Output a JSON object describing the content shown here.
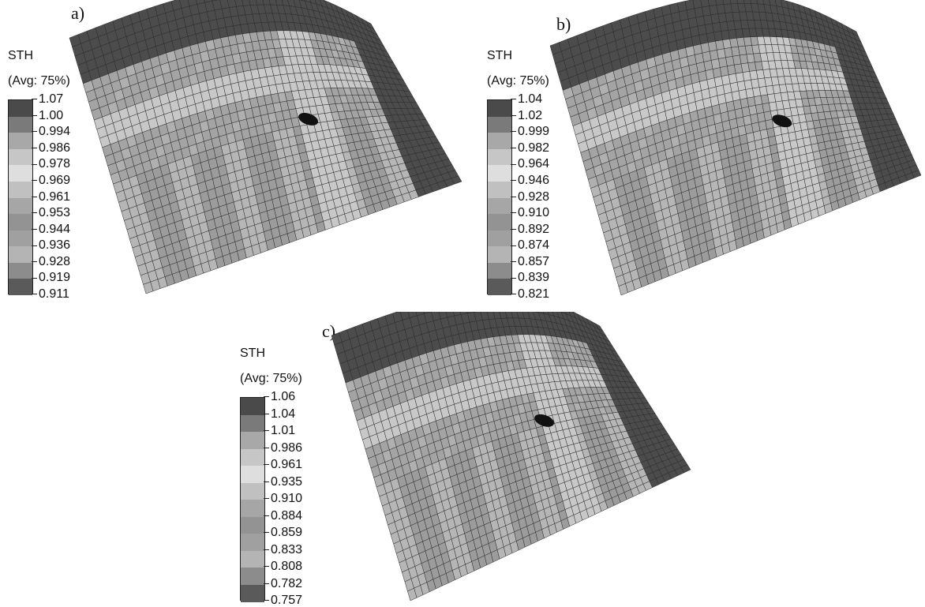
{
  "panels": [
    {
      "id": "a",
      "label": "a)",
      "legend": {
        "title": "STH",
        "subtitle": "(Avg: 75%)",
        "values": [
          "1.07",
          "1.00",
          "0.994",
          "0.986",
          "0.978",
          "0.969",
          "0.961",
          "0.953",
          "0.944",
          "0.936",
          "0.928",
          "0.919",
          "0.911"
        ]
      }
    },
    {
      "id": "b",
      "label": "b)",
      "legend": {
        "title": "STH",
        "subtitle": "(Avg: 75%)",
        "values": [
          "1.04",
          "1.02",
          "0.999",
          "0.982",
          "0.964",
          "0.946",
          "0.928",
          "0.910",
          "0.892",
          "0.874",
          "0.857",
          "0.839",
          "0.821"
        ]
      }
    },
    {
      "id": "c",
      "label": "c)",
      "legend": {
        "title": "STH",
        "subtitle": "(Avg: 75%)",
        "values": [
          "1.06",
          "1.04",
          "1.01",
          "0.986",
          "0.961",
          "0.935",
          "0.910",
          "0.884",
          "0.859",
          "0.833",
          "0.808",
          "0.782",
          "0.757"
        ]
      }
    }
  ],
  "colors": {
    "band_grays": [
      "#4a4a4a",
      "#7a7a7a",
      "#a8a8a8",
      "#c6c6c6",
      "#dedede",
      "#c0c0c0",
      "#a6a6a6",
      "#939393",
      "#a0a0a0",
      "#b4b4b4",
      "#8c8c8c",
      "#5a5a5a",
      "#1e1e1e"
    ],
    "mesh_line": "#2a2a2a",
    "rim_dark": "#4c4c4c",
    "body_mid": "#a4a4a4",
    "body_light": "#c8c8c8",
    "defect": "#111111"
  }
}
